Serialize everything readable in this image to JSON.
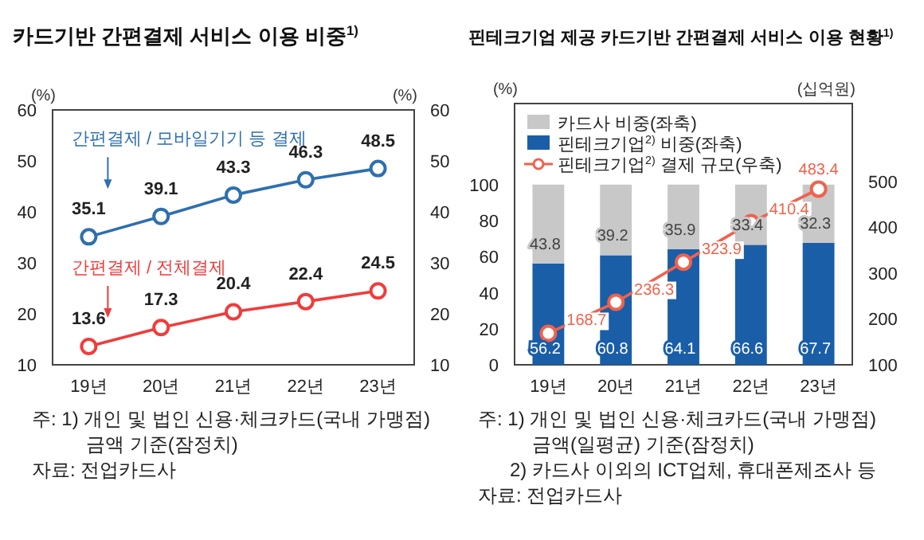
{
  "chart_data": [
    {
      "type": "line",
      "title": "카드기반 간편결제 서비스 이용 비중$^{1)}$",
      "categories": [
        "19년",
        "20년",
        "21년",
        "22년",
        "23년"
      ],
      "series": [
        {
          "name": "간편결제 / 모바일기기 등 결제",
          "color": "#2e6fb0",
          "values": [
            35.1,
            39.1,
            43.3,
            46.3,
            48.5
          ]
        },
        {
          "name": "간편결제 / 전체결제",
          "color": "#f03c3c",
          "values": [
            13.6,
            17.3,
            20.4,
            22.4,
            24.5
          ]
        }
      ],
      "ylabel": "(%)",
      "y2label": "(%)",
      "ylim": [
        10,
        60
      ],
      "yticks": [
        10,
        20,
        30,
        40,
        50,
        60
      ],
      "y2lim": [
        10,
        60
      ],
      "y2ticks": [
        10,
        20,
        30,
        40,
        50,
        60
      ],
      "marker": "circle",
      "data_labels": true,
      "legend": false,
      "grid": false,
      "annotations": [
        "주: 1) 개인 및 법인 신용·체크카드(국내 가맹점) 금액 기준(잠정치)",
        "자료: 전업카드사"
      ]
    },
    {
      "type": "bar",
      "title": "핀테크기업 제공 카드기반 간편결제 서비스 이용 현황$^{1)}$",
      "categories": [
        "19년",
        "20년",
        "21년",
        "22년",
        "23년"
      ],
      "stacked": true,
      "series": [
        {
          "name": "핀테크기업$^{2)}$ 비중(좌축)",
          "color": "#1a5ea8",
          "values": [
            56.2,
            60.8,
            64.1,
            66.6,
            67.7
          ]
        },
        {
          "name": "카드사 비중(좌축)",
          "color": "#c8c8c8",
          "values": [
            43.8,
            39.2,
            35.9,
            33.4,
            32.3
          ]
        },
        {
          "name": "핀테크기업$^{2)}$ 결제 규모(우축)",
          "type": "line",
          "axis": "y2",
          "marker": "circle",
          "color": "#f0624d",
          "values": [
            168.7,
            236.3,
            323.9,
            410.4,
            483.4
          ]
        }
      ],
      "ylabel": "(%)",
      "y2label": "(십억원)",
      "ylim": [
        0,
        145
      ],
      "yticks": [
        0,
        20,
        40,
        60,
        80,
        100
      ],
      "y2lim": [
        100,
        670
      ],
      "y2ticks": [
        100,
        200,
        300,
        400,
        500
      ],
      "data_labels": true,
      "legend": "top left",
      "grid": false,
      "annotations": [
        "주: 1) 개인 및 법인 신용·체크카드(국내 가맹점) 금액(일평균) 기준(잠정치)",
        "2) 카드사 이외의 ICT업체, 휴대폰제조사 등",
        "자료: 전업카드사"
      ]
    }
  ]
}
